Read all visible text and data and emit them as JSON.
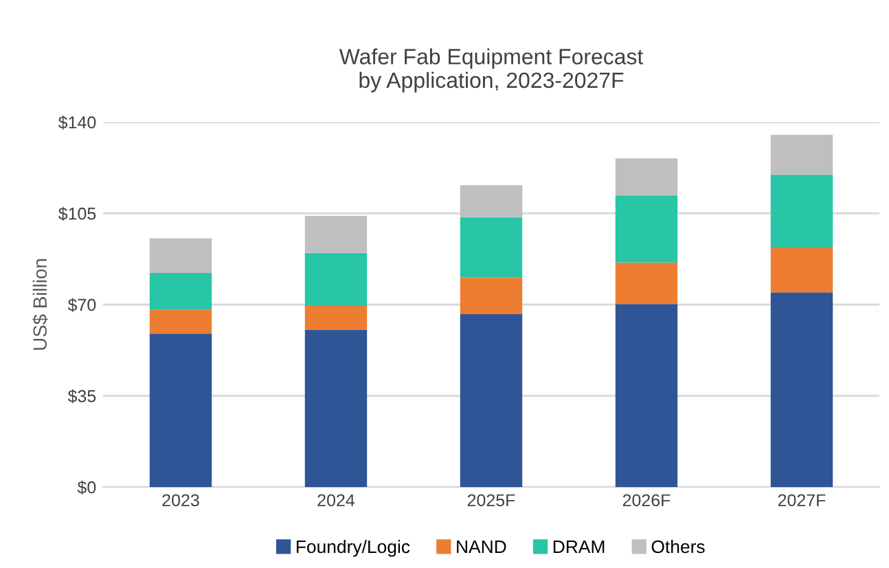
{
  "chart_data": {
    "type": "bar",
    "stacked": true,
    "title": "Wafer Fab Equipment Forecast\nby Application, 2023-2027F",
    "ylabel": "US$ Billion",
    "categories": [
      "2023",
      "2024",
      "2025F",
      "2026F",
      "2027F"
    ],
    "series": [
      {
        "name": "Foundry/Logic",
        "color": "#2f5597",
        "values": [
          58.9,
          60.4,
          66.3,
          70.2,
          74.7
        ]
      },
      {
        "name": "NAND",
        "color": "#ed7d31",
        "values": [
          9.2,
          9.1,
          14.1,
          15.9,
          17.4
        ]
      },
      {
        "name": "DRAM",
        "color": "#26c6a6",
        "values": [
          14.0,
          20.3,
          23.1,
          25.8,
          27.7
        ]
      },
      {
        "name": "Others",
        "color": "#bfbfbf",
        "values": [
          13.3,
          14.2,
          12.3,
          14.2,
          15.3
        ]
      }
    ],
    "ylim": [
      0,
      140
    ],
    "yticks": [
      {
        "value": 0,
        "label": "$0"
      },
      {
        "value": 35,
        "label": "$35"
      },
      {
        "value": 70,
        "label": "$70"
      },
      {
        "value": 105,
        "label": "$105"
      },
      {
        "value": 140,
        "label": "$140"
      }
    ],
    "grid": "y",
    "legend": "bottom"
  }
}
